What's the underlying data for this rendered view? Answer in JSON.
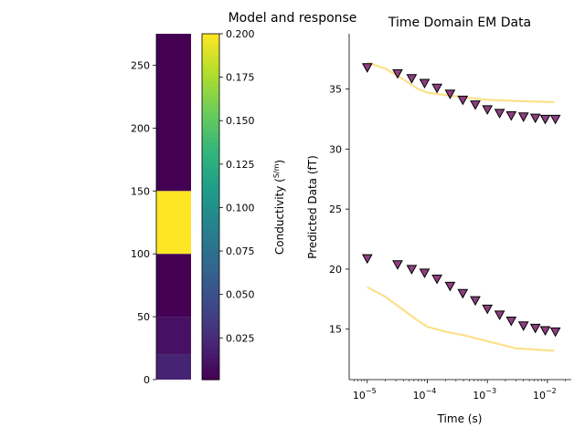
{
  "figure_title": "Model and response",
  "chart_data": [
    {
      "type": "heatmap",
      "title": "",
      "ylabel": "",
      "ylim": [
        0,
        275
      ],
      "yticks": [
        0,
        50,
        100,
        150,
        200,
        250
      ],
      "layers": [
        {
          "depth_from": 0,
          "depth_to": 20,
          "conductivity": 0.02
        },
        {
          "depth_from": 20,
          "depth_to": 50,
          "conductivity": 0.01
        },
        {
          "depth_from": 50,
          "depth_to": 100,
          "conductivity": 0.001
        },
        {
          "depth_from": 100,
          "depth_to": 150,
          "conductivity": 0.2
        },
        {
          "depth_from": 150,
          "depth_to": 275,
          "conductivity": 0.001
        }
      ],
      "colorbar": {
        "label": "Conductivity (S/m)",
        "label_prefix": "Conductivity (",
        "label_unit_num": "S",
        "label_unit_den": "m",
        "label_suffix": ")",
        "range": [
          0.001,
          0.2
        ],
        "ticks": [
          "0.025",
          "0.050",
          "0.075",
          "0.100",
          "0.125",
          "0.150",
          "0.175",
          "0.200"
        ],
        "colormap": "viridis"
      }
    },
    {
      "type": "scatter",
      "title": "Time Domain EM Data",
      "xlabel": "Time (s)",
      "ylabel": "Predicted Data (fT)",
      "xscale": "log",
      "xlim": [
        5e-06,
        0.025
      ],
      "ylim": [
        10.8,
        39.6
      ],
      "xticks": [
        {
          "value": 1e-05,
          "base": "10",
          "exp": "−5"
        },
        {
          "value": 0.0001,
          "base": "10",
          "exp": "−4"
        },
        {
          "value": 0.001,
          "base": "10",
          "exp": "−3"
        },
        {
          "value": 0.01,
          "base": "10",
          "exp": "−2"
        }
      ],
      "yticks": [
        15,
        20,
        25,
        30,
        35
      ],
      "series": [
        {
          "kind": "markers",
          "marker": "triangle-down",
          "color": "#8e3f80",
          "x": [
            1e-05,
            3.2e-05,
            5.5e-05,
            9e-05,
            0.000145,
            0.00024,
            0.00039,
            0.00063,
            0.001,
            0.0016,
            0.0025,
            0.004,
            0.0063,
            0.0092,
            0.0136
          ],
          "y": [
            36.8,
            36.3,
            35.9,
            35.5,
            35.1,
            34.6,
            34.1,
            33.7,
            33.3,
            33.0,
            32.8,
            32.7,
            32.6,
            32.5,
            32.5
          ]
        },
        {
          "kind": "markers",
          "marker": "triangle-down",
          "color": "#8e3f80",
          "x": [
            1e-05,
            3.2e-05,
            5.5e-05,
            9e-05,
            0.000145,
            0.00024,
            0.00039,
            0.00063,
            0.001,
            0.0016,
            0.0025,
            0.004,
            0.0063,
            0.0092,
            0.0136
          ],
          "y": [
            20.9,
            20.4,
            20.0,
            19.7,
            19.2,
            18.6,
            18.0,
            17.4,
            16.7,
            16.2,
            15.7,
            15.3,
            15.1,
            14.9,
            14.8
          ]
        },
        {
          "kind": "line",
          "color": "#fde08a",
          "x": [
            1e-05,
            2e-05,
            4e-05,
            7e-05,
            0.0001,
            0.0002,
            0.0004,
            0.001,
            0.003,
            0.013
          ],
          "y": [
            37.2,
            36.7,
            35.8,
            35.0,
            34.7,
            34.5,
            34.3,
            34.1,
            34.0,
            33.9
          ]
        },
        {
          "kind": "line",
          "color": "#fde08a",
          "x": [
            1e-05,
            2e-05,
            4e-05,
            7e-05,
            0.0001,
            0.0002,
            0.0004,
            0.001,
            0.003,
            0.013
          ],
          "y": [
            18.5,
            17.7,
            16.6,
            15.7,
            15.2,
            14.8,
            14.5,
            14.0,
            13.4,
            13.2
          ]
        }
      ]
    }
  ]
}
